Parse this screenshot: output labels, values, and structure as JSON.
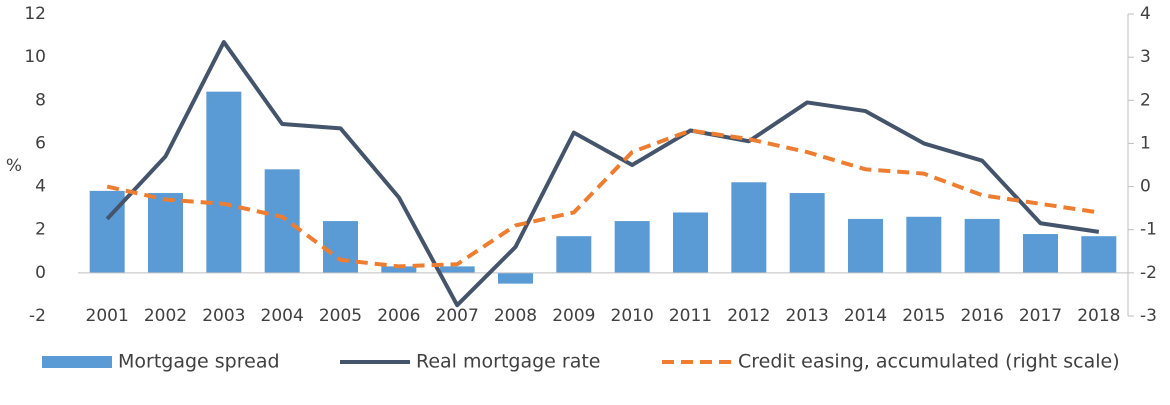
{
  "chart_data": {
    "type": "combo",
    "ylabel": "%",
    "categories": [
      "2001",
      "2002",
      "2003",
      "2004",
      "2005",
      "2006",
      "2007",
      "2008",
      "2009",
      "2010",
      "2011",
      "2012",
      "2013",
      "2014",
      "2015",
      "2016",
      "2017",
      "2018"
    ],
    "series": [
      {
        "name": "Mortgage spread",
        "type": "bar",
        "color": "#5b9bd5",
        "values": [
          3.8,
          3.7,
          8.4,
          4.8,
          2.4,
          0.3,
          0.3,
          -0.5,
          1.7,
          2.4,
          2.8,
          4.2,
          3.7,
          2.5,
          2.6,
          2.5,
          1.8,
          1.7
        ]
      },
      {
        "name": "Real mortgage rate",
        "type": "line",
        "color": "#44546a",
        "values": [
          2.5,
          5.4,
          10.7,
          6.9,
          6.7,
          3.5,
          -1.5,
          1.2,
          6.5,
          5.0,
          6.6,
          6.1,
          7.9,
          7.5,
          6.0,
          5.2,
          2.3,
          1.9
        ]
      },
      {
        "name": "Credit easing, accumulated (right scale)",
        "type": "dashed-line",
        "color": "#ed7d31",
        "axis": "y2",
        "values": [
          0,
          -0.3,
          -0.4,
          -0.7,
          -1.7,
          -1.85,
          -1.8,
          -0.9,
          -0.6,
          0.8,
          1.3,
          1.1,
          0.8,
          0.4,
          0.3,
          -0.2,
          -0.4,
          -0.6
        ]
      }
    ],
    "ylim": [
      -2,
      12
    ],
    "yticks": [
      -2,
      0,
      2,
      4,
      6,
      8,
      10,
      12
    ],
    "y2lim": [
      -3,
      4
    ],
    "y2ticks": [
      -3,
      -2,
      -1,
      0,
      1,
      2,
      3,
      4
    ]
  }
}
